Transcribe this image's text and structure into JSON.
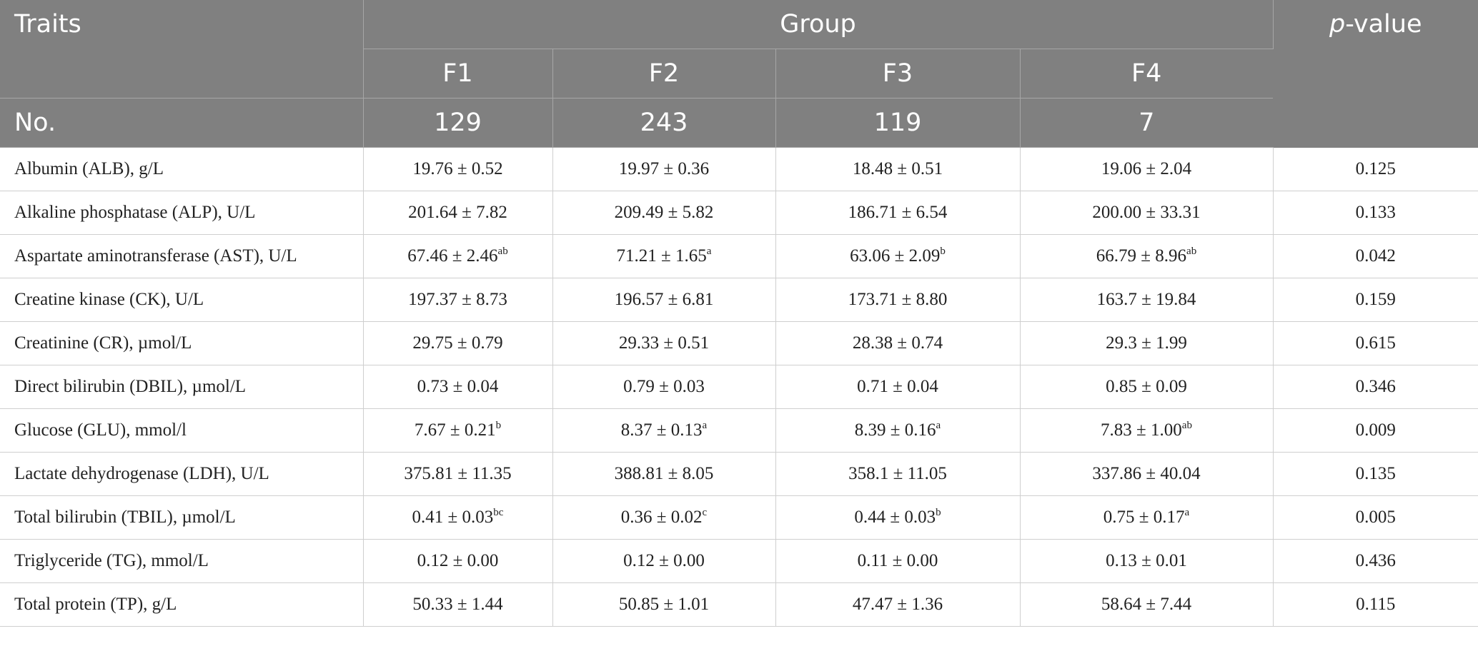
{
  "header": {
    "traits": "Traits",
    "group": "Group",
    "p_value_italic": "p",
    "p_value_rest": "-value",
    "groups": [
      "F1",
      "F2",
      "F3",
      "F4"
    ],
    "no_label": "No.",
    "counts": [
      "129",
      "243",
      "119",
      "7"
    ]
  },
  "rows": [
    {
      "trait": "Albumin (ALB), g/L",
      "values": [
        {
          "v": "19.76 ± 0.52",
          "s": ""
        },
        {
          "v": "19.97 ± 0.36",
          "s": ""
        },
        {
          "v": "18.48 ± 0.51",
          "s": ""
        },
        {
          "v": "19.06 ± 2.04",
          "s": ""
        }
      ],
      "p": "0.125"
    },
    {
      "trait": "Alkaline phosphatase (ALP), U/L",
      "values": [
        {
          "v": "201.64 ± 7.82",
          "s": ""
        },
        {
          "v": "209.49 ± 5.82",
          "s": ""
        },
        {
          "v": "186.71 ± 6.54",
          "s": ""
        },
        {
          "v": "200.00 ± 33.31",
          "s": ""
        }
      ],
      "p": "0.133"
    },
    {
      "trait": "Aspartate aminotransferase (AST), U/L",
      "values": [
        {
          "v": "67.46 ± 2.46",
          "s": "ab"
        },
        {
          "v": "71.21 ± 1.65",
          "s": "a"
        },
        {
          "v": "63.06 ± 2.09",
          "s": "b"
        },
        {
          "v": "66.79 ± 8.96",
          "s": "ab"
        }
      ],
      "p": "0.042"
    },
    {
      "trait": "Creatine kinase (CK), U/L",
      "values": [
        {
          "v": "197.37 ± 8.73",
          "s": ""
        },
        {
          "v": "196.57 ± 6.81",
          "s": ""
        },
        {
          "v": "173.71 ± 8.80",
          "s": ""
        },
        {
          "v": "163.7 ± 19.84",
          "s": ""
        }
      ],
      "p": "0.159"
    },
    {
      "trait": "Creatinine (CR), µmol/L",
      "values": [
        {
          "v": "29.75 ± 0.79",
          "s": ""
        },
        {
          "v": "29.33 ± 0.51",
          "s": ""
        },
        {
          "v": "28.38 ± 0.74",
          "s": ""
        },
        {
          "v": "29.3 ± 1.99",
          "s": ""
        }
      ],
      "p": "0.615"
    },
    {
      "trait": "Direct bilirubin (DBIL), µmol/L",
      "values": [
        {
          "v": "0.73 ± 0.04",
          "s": ""
        },
        {
          "v": "0.79 ± 0.03",
          "s": ""
        },
        {
          "v": "0.71 ± 0.04",
          "s": ""
        },
        {
          "v": "0.85 ± 0.09",
          "s": ""
        }
      ],
      "p": "0.346"
    },
    {
      "trait": "Glucose (GLU), mmol/l",
      "values": [
        {
          "v": "7.67 ± 0.21",
          "s": "b"
        },
        {
          "v": "8.37 ± 0.13",
          "s": "a"
        },
        {
          "v": "8.39 ± 0.16",
          "s": "a"
        },
        {
          "v": "7.83 ± 1.00",
          "s": "ab"
        }
      ],
      "p": "0.009"
    },
    {
      "trait": "Lactate dehydrogenase (LDH), U/L",
      "values": [
        {
          "v": "375.81 ± 11.35",
          "s": ""
        },
        {
          "v": "388.81 ± 8.05",
          "s": ""
        },
        {
          "v": "358.1 ± 11.05",
          "s": ""
        },
        {
          "v": "337.86 ± 40.04",
          "s": ""
        }
      ],
      "p": "0.135"
    },
    {
      "trait": "Total bilirubin (TBIL), µmol/L",
      "values": [
        {
          "v": "0.41 ± 0.03",
          "s": "bc"
        },
        {
          "v": "0.36 ± 0.02",
          "s": "c"
        },
        {
          "v": "0.44 ± 0.03",
          "s": "b"
        },
        {
          "v": "0.75 ± 0.17",
          "s": "a"
        }
      ],
      "p": "0.005"
    },
    {
      "trait": "Triglyceride (TG), mmol/L",
      "values": [
        {
          "v": "0.12 ± 0.00",
          "s": ""
        },
        {
          "v": "0.12 ± 0.00",
          "s": ""
        },
        {
          "v": "0.11 ± 0.00",
          "s": ""
        },
        {
          "v": "0.13 ± 0.01",
          "s": ""
        }
      ],
      "p": "0.436"
    },
    {
      "trait": "Total protein (TP), g/L",
      "values": [
        {
          "v": "50.33 ± 1.44",
          "s": ""
        },
        {
          "v": "50.85 ± 1.01",
          "s": ""
        },
        {
          "v": "47.47 ± 1.36",
          "s": ""
        },
        {
          "v": "58.64 ± 7.44",
          "s": ""
        }
      ],
      "p": "0.115"
    }
  ]
}
